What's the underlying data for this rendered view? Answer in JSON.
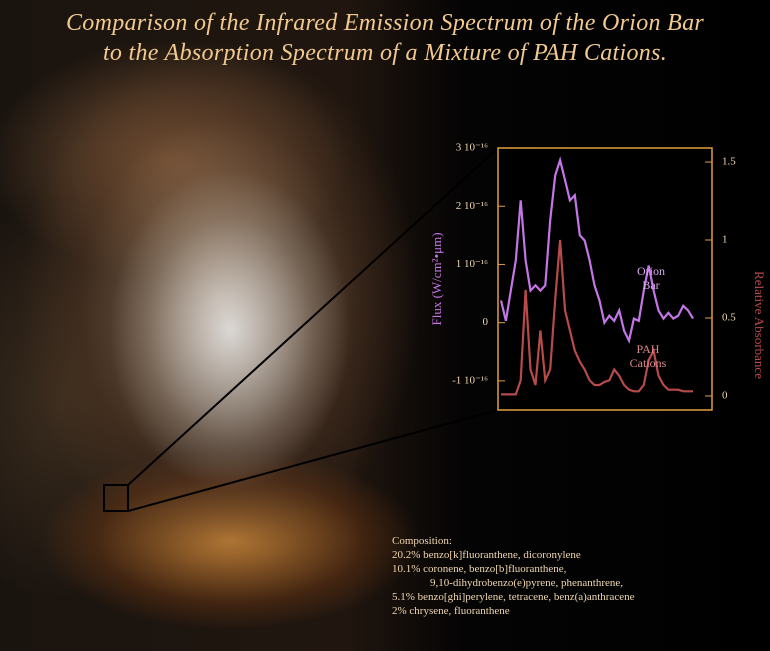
{
  "chart_data": {
    "type": "line",
    "title": [
      "Comparison of the Infrared Emission Spectrum of the Orion Bar",
      "to the Absorption Spectrum of a Mixture of PAH Cations."
    ],
    "ylabel": "Flux (W/cm²•μm)",
    "y2label": "Relative Absorbance",
    "categories": [
      null,
      null,
      null,
      null,
      null,
      null,
      null,
      null,
      null,
      null,
      null,
      null,
      null,
      null,
      null,
      null,
      null,
      null,
      null,
      null,
      null,
      null,
      null,
      null,
      null,
      null,
      null,
      null,
      null,
      null,
      null,
      null,
      null,
      null,
      null,
      null,
      null,
      null,
      null,
      null
    ],
    "ylim": [
      -1.5e-16,
      3e-16
    ],
    "yticks": [
      {
        "value": -1e-16,
        "label": "-1 10⁻¹⁶"
      },
      0,
      {
        "value": 1e-16,
        "label": "1 10⁻¹⁶"
      },
      {
        "value": 2e-16,
        "label": "2 10⁻¹⁶"
      },
      {
        "value": 3e-16,
        "label": "3 10⁻¹⁶"
      }
    ],
    "y2lim": [
      -0.09,
      1.59
    ],
    "y2ticks": [
      0,
      0.5,
      1,
      1.5
    ],
    "series": [
      {
        "name": "Orion Bar",
        "color": "#c476e6",
        "axis": "y",
        "values": [
          3.8e-17,
          3e-18,
          5.5e-17,
          1.07e-16,
          2.1e-16,
          1.07e-16,
          5.5e-17,
          6.4e-17,
          5.5e-17,
          6.4e-17,
          1.76e-16,
          2.53e-16,
          2.79e-16,
          2.45e-16,
          2.1e-16,
          2.19e-16,
          1.5e-16,
          1.41e-16,
          1.07e-16,
          6.4e-17,
          3.8e-17,
          0,
          1.2e-17,
          3e-18,
          2.1e-17,
          -1.4e-17,
          -3.1e-17,
          7e-18,
          3e-18,
          5.5e-17,
          9.8e-17,
          5.5e-17,
          2.1e-17,
          7e-18,
          1.7e-17,
          7e-18,
          1.2e-17,
          2.9e-17,
          2.1e-17,
          7e-18
        ]
      },
      {
        "name": "PAH Cations",
        "color": "#b84a4a",
        "axis": "y2",
        "values": [
          0.01,
          0.01,
          0.01,
          0.01,
          0.1,
          0.68,
          0.17,
          0.07,
          0.42,
          0.1,
          0.17,
          0.62,
          1.0,
          0.55,
          0.42,
          0.29,
          0.22,
          0.17,
          0.1,
          0.07,
          0.07,
          0.09,
          0.1,
          0.17,
          0.13,
          0.07,
          0.04,
          0.03,
          0.03,
          0.07,
          0.23,
          0.29,
          0.13,
          0.07,
          0.04,
          0.04,
          0.04,
          0.03,
          0.03,
          0.03
        ]
      }
    ],
    "annotations": [
      "Composition:",
      "20.2% benzo[k]fluoranthene, dicoronylene",
      "10.1% coronene,  benzo[b]fluoranthene,",
      "9,10-dihydrobenzo(e)pyrene, phenanthrene,",
      "5.1% benzo[ghi]perylene, tetracene, benz(a)anthracene",
      "2%  chrysene,  fluoranthene"
    ]
  }
}
